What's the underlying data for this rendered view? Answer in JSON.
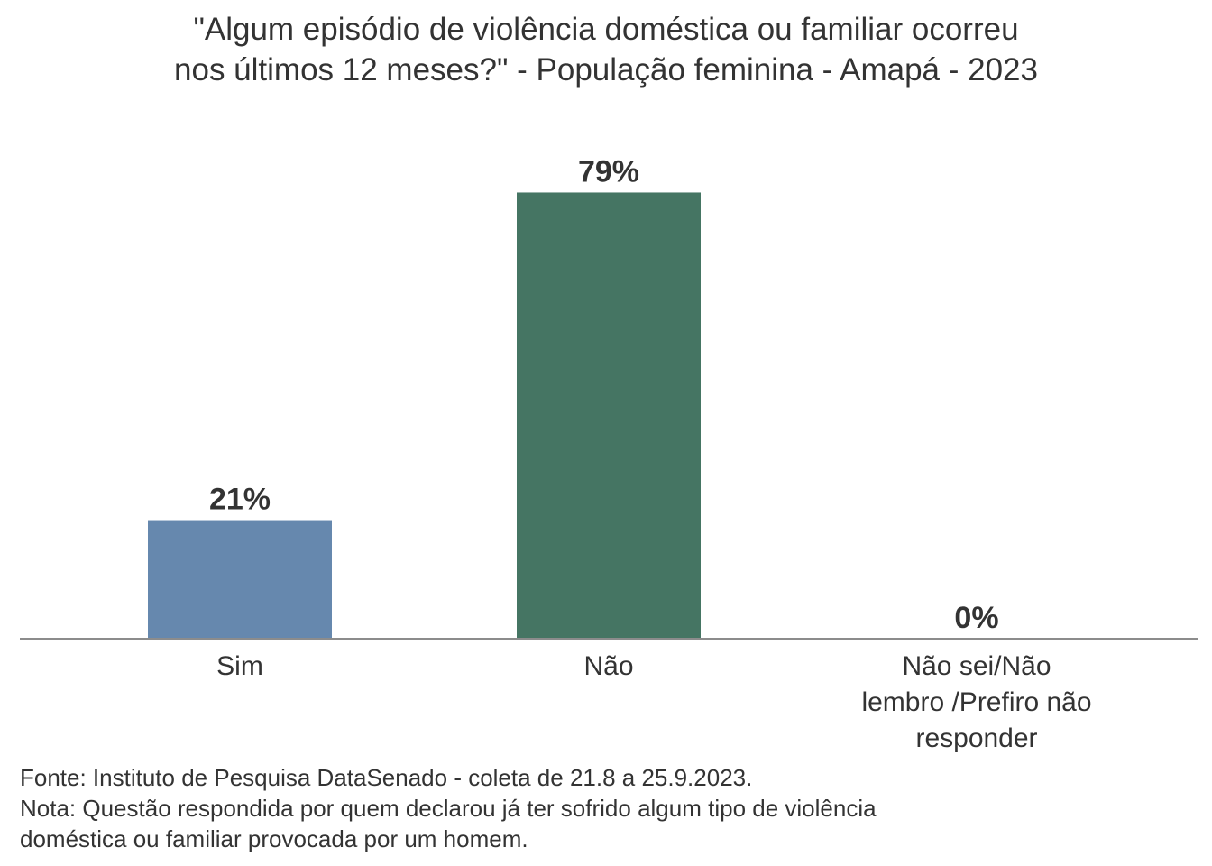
{
  "chart_data": {
    "type": "bar",
    "title_lines": [
      "\"Algum episódio de violência doméstica ou familiar ocorreu",
      "nos últimos 12 meses?\" - População feminina - Amapá - 2023"
    ],
    "categories": [
      [
        "Sim"
      ],
      [
        "Não"
      ],
      [
        "Não sei/Não",
        "lembro /Prefiro não",
        "responder"
      ]
    ],
    "values": [
      21,
      79,
      0
    ],
    "value_labels": [
      "21%",
      "79%",
      "0%"
    ],
    "colors": [
      "#6688AE",
      "#457563",
      "#999999"
    ],
    "ylim": [
      0,
      100
    ],
    "grid": false,
    "legend": "none"
  },
  "footer": {
    "source": "Fonte: Instituto de Pesquisa DataSenado - coleta de 21.8 a 25.9.2023.",
    "note_line1": "Nota: Questão respondida por quem declarou já ter sofrido algum tipo de violência",
    "note_line2": "doméstica ou familiar provocada por um homem."
  }
}
